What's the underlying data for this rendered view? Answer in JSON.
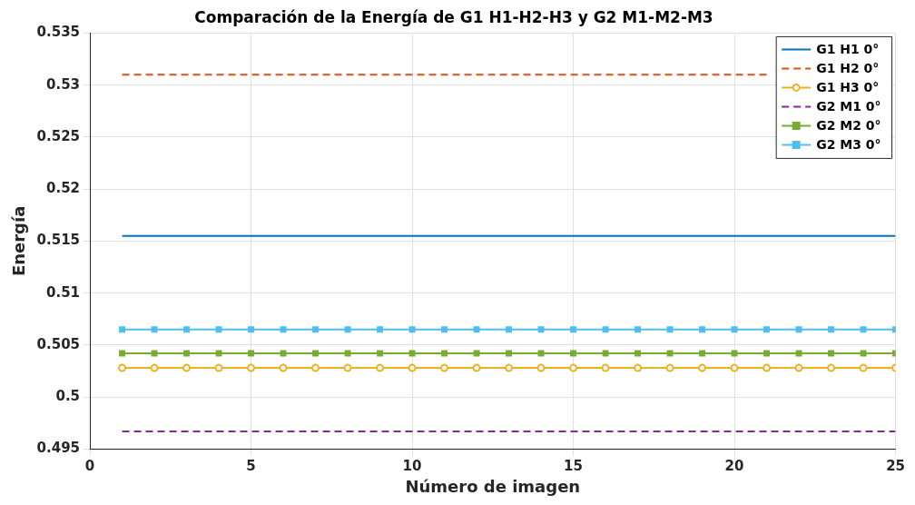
{
  "chart_data": {
    "type": "line",
    "title": "Comparación de la Energía de G1 H1-H2-H3 y G2 M1-M2-M3",
    "xlabel": "Número de imagen",
    "ylabel": "Energía",
    "x": [
      1,
      2,
      3,
      4,
      5,
      6,
      7,
      8,
      9,
      10,
      11,
      12,
      13,
      14,
      15,
      16,
      17,
      18,
      19,
      20,
      21,
      22,
      23,
      24,
      25
    ],
    "series": [
      {
        "name": "G1 H1 0°",
        "color": "#0072bd",
        "marker": "none",
        "line_style": "solid",
        "values": [
          0.5155,
          0.5155,
          0.5155,
          0.5155,
          0.5155,
          0.5155,
          0.5155,
          0.5155,
          0.5155,
          0.5155,
          0.5155,
          0.5155,
          0.5155,
          0.5155,
          0.5155,
          0.5155,
          0.5155,
          0.5155,
          0.5155,
          0.5155,
          0.5155,
          0.5155,
          0.5155,
          0.5155,
          0.5155
        ]
      },
      {
        "name": "G1 H2 0°",
        "color": "#d95319",
        "marker": "none",
        "line_style": "dashed",
        "values": [
          0.531,
          0.531,
          0.531,
          0.531,
          0.531,
          0.531,
          0.531,
          0.531,
          0.531,
          0.531,
          0.531,
          0.531,
          0.531,
          0.531,
          0.531,
          0.531,
          0.531,
          0.531,
          0.531,
          0.531,
          0.531,
          null,
          null,
          null,
          null
        ]
      },
      {
        "name": "G1 H3 0°",
        "color": "#edb120",
        "marker": "circle",
        "line_style": "solid",
        "values": [
          0.5028,
          0.5028,
          0.5028,
          0.5028,
          0.5028,
          0.5028,
          0.5028,
          0.5028,
          0.5028,
          0.5028,
          0.5028,
          0.5028,
          0.5028,
          0.5028,
          0.5028,
          0.5028,
          0.5028,
          0.5028,
          0.5028,
          0.5028,
          0.5028,
          0.5028,
          0.5028,
          0.5028,
          0.5028
        ]
      },
      {
        "name": "G2 M1 0°",
        "color": "#7e2f8e",
        "marker": "none",
        "line_style": "dashed",
        "values": [
          0.4967,
          0.4967,
          0.4967,
          0.4967,
          0.4967,
          0.4967,
          0.4967,
          0.4967,
          0.4967,
          0.4967,
          0.4967,
          0.4967,
          0.4967,
          0.4967,
          0.4967,
          0.4967,
          0.4967,
          0.4967,
          0.4967,
          0.4967,
          0.4967,
          0.4967,
          0.4967,
          0.4967,
          0.4967
        ]
      },
      {
        "name": "G2 M2 0°",
        "color": "#77ac30",
        "marker": "square",
        "line_style": "solid",
        "values": [
          0.5042,
          0.5042,
          0.5042,
          0.5042,
          0.5042,
          0.5042,
          0.5042,
          0.5042,
          0.5042,
          0.5042,
          0.5042,
          0.5042,
          0.5042,
          0.5042,
          0.5042,
          0.5042,
          0.5042,
          0.5042,
          0.5042,
          0.5042,
          0.5042,
          0.5042,
          0.5042,
          0.5042,
          0.5042
        ]
      },
      {
        "name": "G2 M3 0°",
        "color": "#4dbeee",
        "marker": "square",
        "line_style": "solid",
        "values": [
          0.5065,
          0.5065,
          0.5065,
          0.5065,
          0.5065,
          0.5065,
          0.5065,
          0.5065,
          0.5065,
          0.5065,
          0.5065,
          0.5065,
          0.5065,
          0.5065,
          0.5065,
          0.5065,
          0.5065,
          0.5065,
          0.5065,
          0.5065,
          0.5065,
          0.5065,
          0.5065,
          0.5065,
          0.5065
        ]
      }
    ],
    "xlim": [
      0,
      25
    ],
    "xticks": [
      0,
      5,
      10,
      15,
      20,
      25
    ],
    "ylim": [
      0.495,
      0.535
    ],
    "yticks": [
      0.495,
      0.5,
      0.505,
      0.51,
      0.515,
      0.52,
      0.525,
      0.53,
      0.535
    ],
    "grid": true,
    "legend": "top right"
  }
}
